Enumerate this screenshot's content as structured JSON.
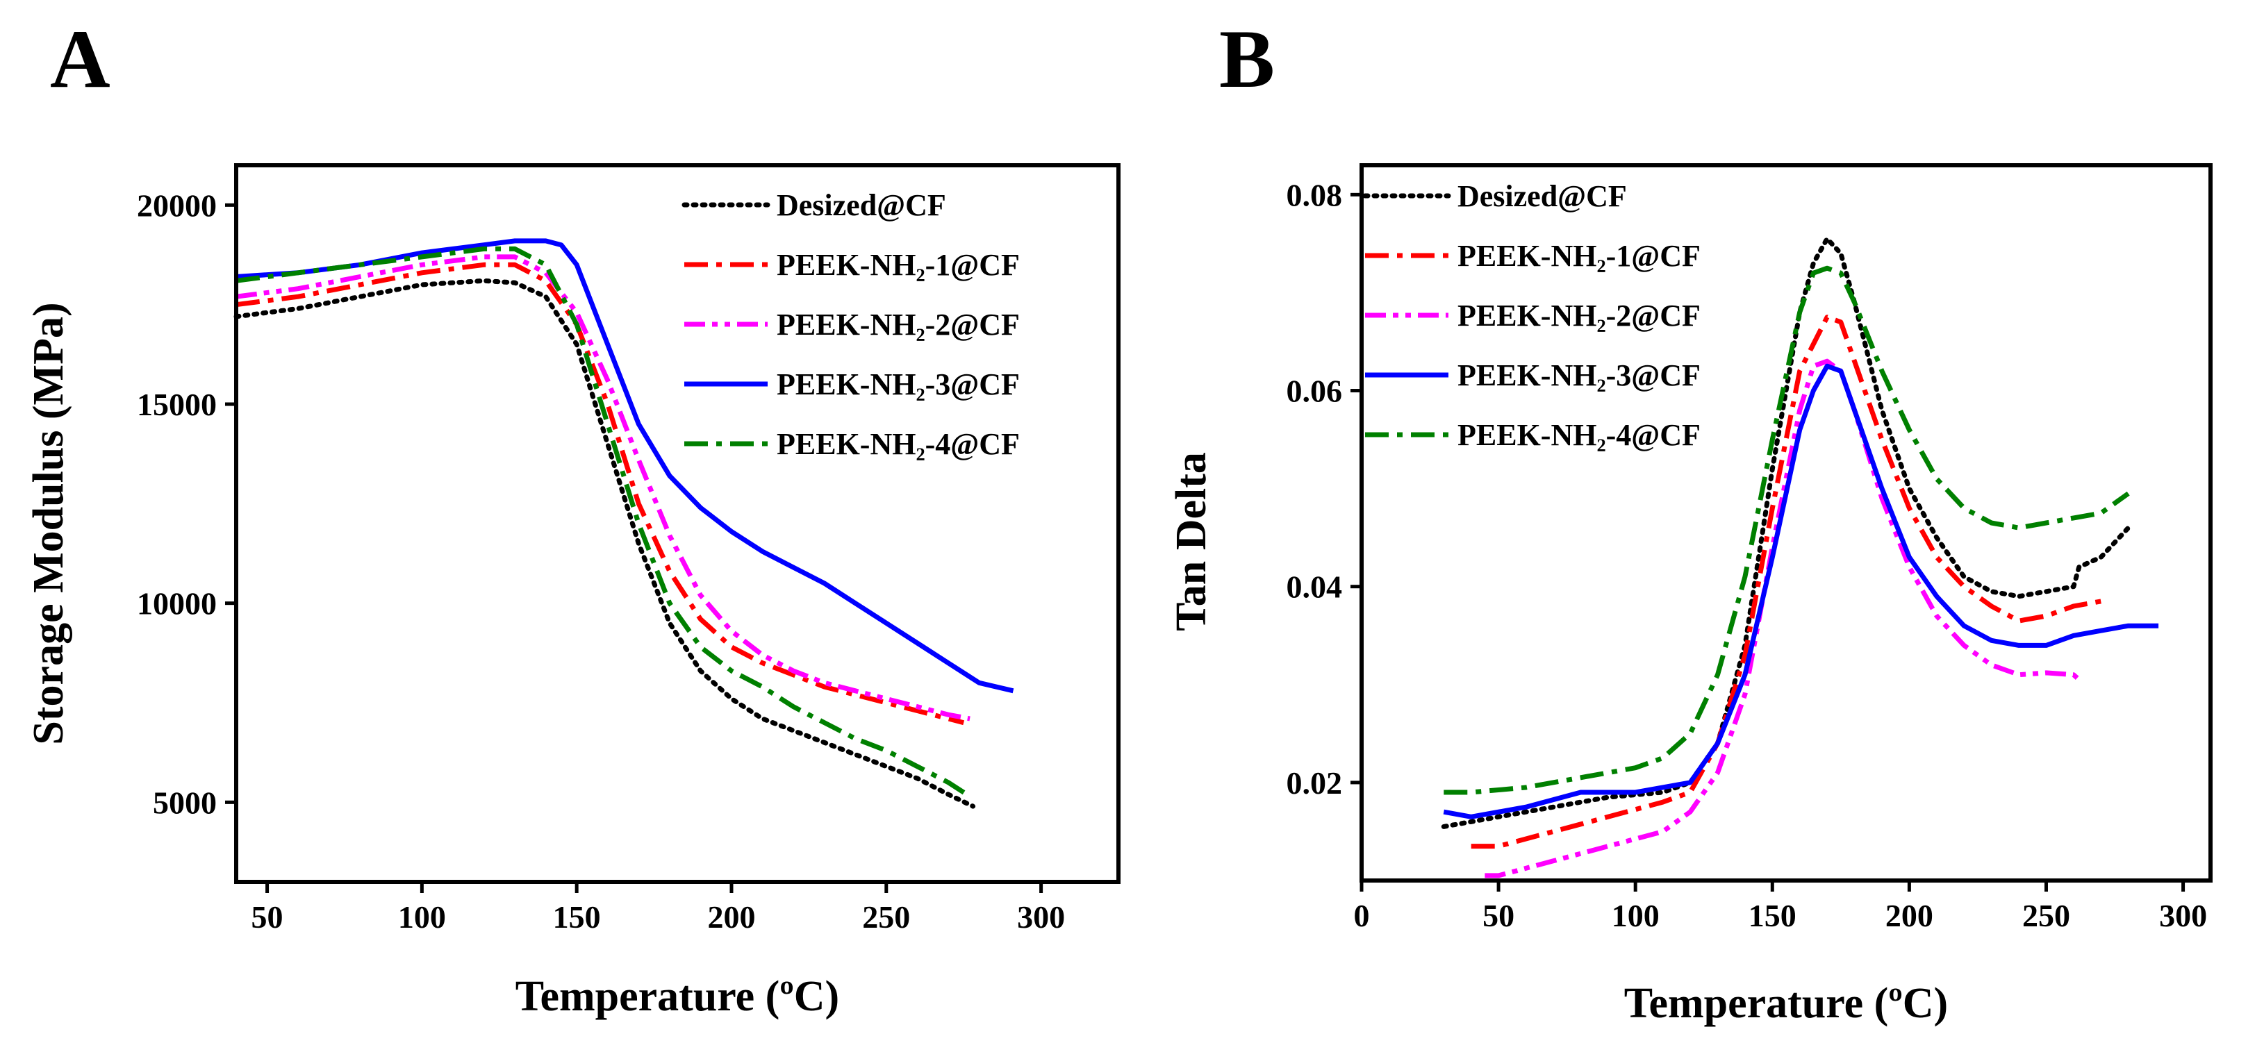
{
  "chart_data": [
    {
      "panel": "A",
      "type": "line",
      "xlabel": "Temperature (ºC)",
      "ylabel": "Storage Modulus (MPa)",
      "xlim": [
        40,
        325
      ],
      "ylim": [
        3000,
        21000
      ],
      "xticks": [
        "50",
        "100",
        "150",
        "200",
        "250",
        "300"
      ],
      "yticks": [
        "5000",
        "10000",
        "15000",
        "20000"
      ],
      "legend_position": "top-right",
      "series": [
        {
          "name": "Desized@CF",
          "color": "#000000",
          "style": "dotted",
          "x": [
            40,
            60,
            80,
            100,
            120,
            130,
            140,
            150,
            160,
            170,
            180,
            190,
            200,
            210,
            220,
            230,
            240,
            250,
            260,
            270,
            278
          ],
          "y": [
            17200,
            17400,
            17700,
            18000,
            18100,
            18050,
            17700,
            16500,
            14000,
            11500,
            9500,
            8300,
            7600,
            7100,
            6800,
            6500,
            6200,
            5900,
            5600,
            5200,
            4900
          ]
        },
        {
          "name": "PEEK-NH₂-1@CF",
          "color": "#ff0000",
          "style": "dashdot",
          "x": [
            40,
            60,
            80,
            100,
            120,
            130,
            140,
            150,
            160,
            170,
            180,
            190,
            200,
            210,
            220,
            230,
            240,
            250,
            260,
            270,
            275
          ],
          "y": [
            17500,
            17700,
            18000,
            18300,
            18500,
            18500,
            18100,
            17000,
            15000,
            12500,
            10800,
            9600,
            8900,
            8500,
            8200,
            7900,
            7700,
            7500,
            7300,
            7100,
            7000
          ]
        },
        {
          "name": "PEEK-NH₂-2@CF",
          "color": "#ff00ff",
          "style": "dashdotdot",
          "x": [
            40,
            60,
            80,
            100,
            120,
            130,
            140,
            150,
            160,
            170,
            180,
            190,
            200,
            210,
            220,
            230,
            240,
            250,
            260,
            270,
            277
          ],
          "y": [
            17700,
            17900,
            18200,
            18500,
            18700,
            18700,
            18300,
            17300,
            15600,
            13600,
            11700,
            10200,
            9300,
            8700,
            8300,
            8000,
            7800,
            7600,
            7400,
            7200,
            7100
          ]
        },
        {
          "name": "PEEK-NH₂-3@CF",
          "color": "#0000ff",
          "style": "solid",
          "x": [
            40,
            60,
            80,
            100,
            120,
            130,
            140,
            145,
            150,
            160,
            170,
            180,
            190,
            200,
            210,
            220,
            230,
            240,
            250,
            260,
            270,
            280,
            291
          ],
          "y": [
            18200,
            18300,
            18500,
            18800,
            19000,
            19100,
            19100,
            19000,
            18500,
            16500,
            14500,
            13200,
            12400,
            11800,
            11300,
            10900,
            10500,
            10000,
            9500,
            9000,
            8500,
            8000,
            7800
          ]
        },
        {
          "name": "PEEK-NH₂-4@CF",
          "color": "#008000",
          "style": "dashdot",
          "x": [
            40,
            60,
            80,
            100,
            120,
            130,
            140,
            150,
            160,
            170,
            180,
            190,
            200,
            210,
            220,
            230,
            240,
            250,
            260,
            270,
            276
          ],
          "y": [
            18100,
            18300,
            18500,
            18700,
            18900,
            18900,
            18500,
            17000,
            14500,
            12000,
            10000,
            8900,
            8300,
            7900,
            7400,
            7000,
            6600,
            6300,
            5900,
            5500,
            5200
          ]
        }
      ]
    },
    {
      "panel": "B",
      "type": "line",
      "xlabel": "Temperature (ºC)",
      "ylabel": "Tan Delta",
      "xlim": [
        0,
        310
      ],
      "ylim": [
        0.01,
        0.083
      ],
      "xticks": [
        "0",
        "50",
        "100",
        "150",
        "200",
        "250",
        "300"
      ],
      "yticks": [
        "0.02",
        "0.04",
        "0.06",
        "0.08"
      ],
      "legend_position": "top-left",
      "series": [
        {
          "name": "Desized@CF",
          "color": "#000000",
          "style": "dotted",
          "x": [
            30,
            50,
            70,
            90,
            110,
            120,
            130,
            140,
            150,
            160,
            165,
            170,
            175,
            180,
            190,
            200,
            210,
            220,
            230,
            240,
            250,
            260,
            262,
            270,
            280
          ],
          "y": [
            0.0155,
            0.0165,
            0.0175,
            0.0185,
            0.019,
            0.02,
            0.024,
            0.034,
            0.052,
            0.068,
            0.073,
            0.0755,
            0.074,
            0.069,
            0.058,
            0.05,
            0.045,
            0.041,
            0.0395,
            0.039,
            0.0395,
            0.04,
            0.042,
            0.043,
            0.046
          ]
        },
        {
          "name": "PEEK-NH₂-1@CF",
          "color": "#ff0000",
          "style": "dashdot",
          "x": [
            40,
            50,
            70,
            90,
            110,
            120,
            130,
            140,
            150,
            160,
            170,
            175,
            180,
            190,
            200,
            210,
            220,
            230,
            240,
            250,
            260,
            270
          ],
          "y": [
            0.0135,
            0.0135,
            0.015,
            0.0165,
            0.018,
            0.019,
            0.024,
            0.033,
            0.048,
            0.062,
            0.0675,
            0.067,
            0.063,
            0.055,
            0.048,
            0.043,
            0.04,
            0.038,
            0.0365,
            0.037,
            0.038,
            0.0385
          ]
        },
        {
          "name": "PEEK-NH₂-2@CF",
          "color": "#ff00ff",
          "style": "dashdotdot",
          "x": [
            45,
            50,
            70,
            90,
            110,
            120,
            130,
            140,
            150,
            160,
            165,
            170,
            175,
            180,
            190,
            200,
            210,
            220,
            230,
            240,
            250,
            260,
            262
          ],
          "y": [
            0.0105,
            0.0105,
            0.012,
            0.0135,
            0.015,
            0.017,
            0.021,
            0.029,
            0.044,
            0.058,
            0.0625,
            0.063,
            0.062,
            0.058,
            0.049,
            0.042,
            0.037,
            0.034,
            0.032,
            0.031,
            0.0312,
            0.031,
            0.0305
          ]
        },
        {
          "name": "PEEK-NH₂-3@CF",
          "color": "#0000ff",
          "style": "solid",
          "x": [
            30,
            40,
            60,
            80,
            100,
            120,
            130,
            140,
            150,
            160,
            165,
            170,
            175,
            180,
            190,
            200,
            210,
            220,
            230,
            240,
            250,
            260,
            270,
            280,
            291
          ],
          "y": [
            0.017,
            0.0165,
            0.0175,
            0.019,
            0.019,
            0.02,
            0.024,
            0.031,
            0.043,
            0.056,
            0.06,
            0.0625,
            0.062,
            0.058,
            0.05,
            0.043,
            0.039,
            0.036,
            0.0345,
            0.034,
            0.034,
            0.035,
            0.0355,
            0.036,
            0.036
          ]
        },
        {
          "name": "PEEK-NH₂-4@CF",
          "color": "#008000",
          "style": "dashdot",
          "x": [
            30,
            40,
            60,
            80,
            100,
            110,
            120,
            130,
            140,
            150,
            160,
            165,
            170,
            175,
            180,
            190,
            200,
            210,
            220,
            230,
            240,
            250,
            260,
            270,
            280
          ],
          "y": [
            0.019,
            0.019,
            0.0195,
            0.0205,
            0.0215,
            0.0225,
            0.025,
            0.031,
            0.041,
            0.055,
            0.068,
            0.072,
            0.0725,
            0.072,
            0.069,
            0.062,
            0.056,
            0.051,
            0.048,
            0.0465,
            0.046,
            0.0465,
            0.047,
            0.0475,
            0.0495
          ]
        }
      ]
    }
  ]
}
